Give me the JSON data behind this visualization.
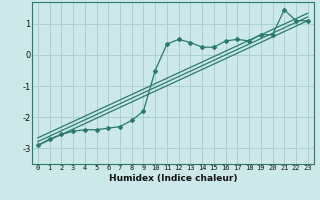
{
  "xlabel": "Humidex (Indice chaleur)",
  "ylabel": "",
  "bg_color": "#cce8e8",
  "grid_color": "#aacece",
  "line_color": "#2a7a6a",
  "xlim": [
    -0.5,
    23.5
  ],
  "ylim": [
    -3.5,
    1.7
  ],
  "xticks": [
    0,
    1,
    2,
    3,
    4,
    5,
    6,
    7,
    8,
    9,
    10,
    11,
    12,
    13,
    14,
    15,
    16,
    17,
    18,
    19,
    20,
    21,
    22,
    23
  ],
  "yticks": [
    -3,
    -2,
    -1,
    0,
    1
  ],
  "main_x": [
    0,
    1,
    2,
    3,
    4,
    5,
    6,
    7,
    8,
    9,
    10,
    11,
    12,
    13,
    14,
    15,
    16,
    17,
    18,
    19,
    20,
    21,
    22,
    23
  ],
  "main_y": [
    -2.9,
    -2.7,
    -2.55,
    -2.45,
    -2.4,
    -2.4,
    -2.35,
    -2.3,
    -2.1,
    -1.8,
    -0.5,
    0.35,
    0.5,
    0.4,
    0.25,
    0.25,
    0.45,
    0.5,
    0.45,
    0.65,
    0.65,
    1.45,
    1.1,
    1.1
  ],
  "line1_x": [
    0,
    23
  ],
  "line1_y": [
    -2.9,
    1.1
  ],
  "line2_x": [
    0,
    23
  ],
  "line2_y": [
    -2.78,
    1.22
  ],
  "line3_x": [
    0,
    23
  ],
  "line3_y": [
    -2.66,
    1.34
  ]
}
